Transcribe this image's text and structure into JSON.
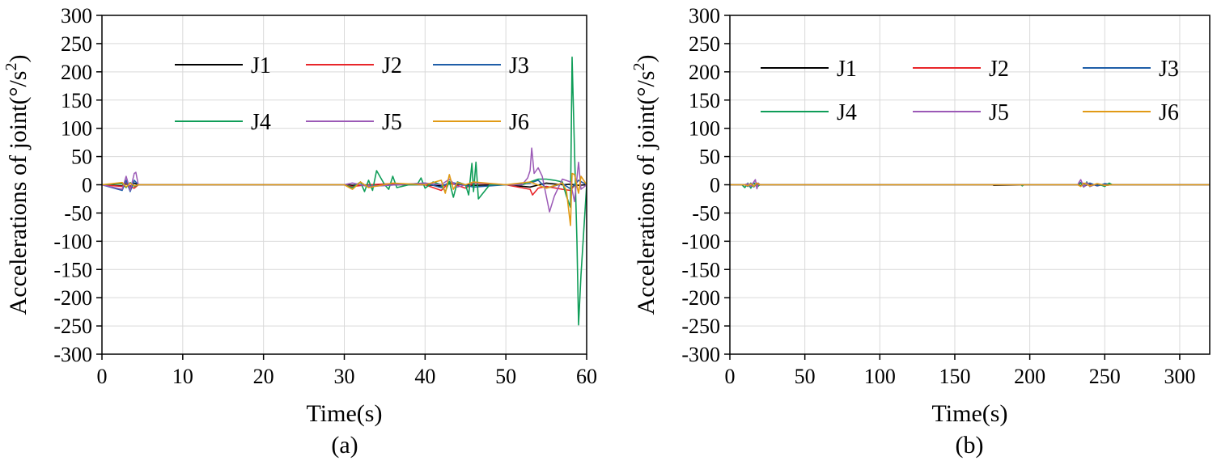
{
  "chart_data": [
    {
      "type": "line",
      "caption": "(a)",
      "xlabel": "Time(s)",
      "ylabel": "Accelerations of joint(°/s²)",
      "ylabel_parts": [
        "Accelerations of joint(°/s",
        "2",
        ")"
      ],
      "xlim": [
        0,
        60
      ],
      "ylim": [
        -300,
        300
      ],
      "xticks": [
        0,
        10,
        20,
        30,
        40,
        50,
        60
      ],
      "yticks": [
        -300,
        -250,
        -200,
        -150,
        -100,
        -50,
        0,
        50,
        100,
        150,
        200,
        250,
        300
      ],
      "grid": true,
      "legend_position": "top",
      "series": [
        {
          "name": "J1",
          "color": "#000000",
          "x": [
            0,
            2.5,
            3,
            3.5,
            4,
            4.5,
            10,
            20,
            30,
            31,
            33,
            36,
            40,
            42,
            43,
            46,
            50,
            53,
            55,
            57,
            58,
            59,
            60
          ],
          "y": [
            0,
            -2,
            2,
            -3,
            3,
            0,
            0,
            0,
            0,
            -1,
            0,
            0,
            0,
            -2,
            2,
            -1,
            0,
            -4,
            3,
            0,
            1,
            -1,
            0
          ]
        },
        {
          "name": "J2",
          "color": "#e8262a",
          "x": [
            0,
            2.5,
            3,
            3.5,
            4,
            4.5,
            10,
            20,
            30,
            31,
            33,
            36,
            40,
            42,
            43,
            45,
            46,
            50,
            53,
            53.3,
            54,
            55,
            57,
            58,
            59,
            60
          ],
          "y": [
            0,
            -3,
            3,
            -4,
            -6,
            0,
            0,
            0,
            0,
            -3,
            0,
            2,
            0,
            -10,
            4,
            -6,
            3,
            0,
            -8,
            -18,
            -6,
            -3,
            -8,
            -10,
            8,
            0
          ]
        },
        {
          "name": "J3",
          "color": "#1f5ea8",
          "x": [
            0,
            2.5,
            3,
            3.5,
            4,
            4.5,
            10,
            20,
            30,
            31,
            33,
            40,
            42,
            43,
            46,
            50,
            53,
            54,
            55,
            57,
            58,
            59,
            60
          ],
          "y": [
            0,
            -10,
            8,
            -12,
            8,
            0,
            0,
            0,
            0,
            3,
            -3,
            3,
            -5,
            5,
            -4,
            0,
            3,
            8,
            -6,
            2,
            -7,
            8,
            0
          ]
        },
        {
          "name": "J4",
          "color": "#0f9d58",
          "x": [
            0,
            2.5,
            3,
            3.5,
            4,
            4.5,
            10,
            20,
            30,
            31,
            32,
            32.5,
            33,
            33.5,
            34,
            35,
            35.5,
            36,
            36.5,
            38,
            39,
            39.5,
            40,
            41,
            42,
            42.5,
            43,
            43.5,
            44,
            45,
            45.4,
            45.8,
            46,
            46.3,
            46.6,
            48,
            50,
            52,
            53,
            54,
            55,
            56,
            57,
            57.5,
            58,
            58.2,
            58.5,
            58.8,
            59,
            59.3,
            60
          ],
          "y": [
            0,
            2,
            -5,
            4,
            -3,
            0,
            0,
            0,
            0,
            -5,
            5,
            -12,
            8,
            -10,
            25,
            0,
            -8,
            15,
            -5,
            0,
            0,
            12,
            -6,
            5,
            0,
            -12,
            6,
            -22,
            5,
            0,
            -18,
            38,
            -12,
            40,
            -25,
            0,
            0,
            0,
            5,
            10,
            10,
            8,
            5,
            -20,
            -40,
            226,
            60,
            -100,
            -248,
            -160,
            0
          ]
        },
        {
          "name": "J5",
          "color": "#9b59b6",
          "x": [
            0,
            2.5,
            3,
            3.5,
            4,
            4.2,
            4.5,
            10,
            20,
            30,
            31,
            33,
            40,
            42,
            43,
            44,
            46,
            50,
            52,
            52.7,
            53,
            53.2,
            53.5,
            54,
            54.5,
            55,
            55.4,
            56,
            57,
            58,
            58.5,
            59,
            59.3,
            60
          ],
          "y": [
            0,
            -8,
            15,
            -10,
            20,
            22,
            0,
            0,
            0,
            0,
            3,
            -3,
            3,
            0,
            10,
            -4,
            4,
            0,
            0,
            12,
            25,
            65,
            20,
            30,
            15,
            -20,
            -48,
            -20,
            10,
            5,
            -30,
            40,
            -8,
            0
          ],
          "width": 1.5
        },
        {
          "name": "J6",
          "color": "#e19a16",
          "x": [
            0,
            2.5,
            3,
            3.5,
            4,
            4.5,
            10,
            20,
            30,
            31,
            32,
            33,
            36,
            40,
            42,
            42.5,
            43,
            43.5,
            44,
            45,
            46,
            50,
            53,
            55,
            57,
            57.5,
            58,
            58.2,
            58.5,
            59,
            59.3,
            60
          ],
          "y": [
            0,
            4,
            -4,
            3,
            -2,
            0,
            0,
            0,
            0,
            -8,
            5,
            -5,
            3,
            0,
            8,
            -15,
            18,
            -8,
            4,
            0,
            5,
            0,
            5,
            -6,
            3,
            -10,
            -72,
            20,
            18,
            -15,
            15,
            0
          ]
        }
      ]
    },
    {
      "type": "line",
      "caption": "(b)",
      "xlabel": "Time(s)",
      "ylabel": "Accelerations of joint(°/s²)",
      "ylabel_parts": [
        "Accelerations of joint(°/s",
        "2",
        ")"
      ],
      "xlim": [
        0,
        320
      ],
      "ylim": [
        -300,
        300
      ],
      "xticks": [
        0,
        50,
        100,
        150,
        200,
        250,
        300
      ],
      "yticks": [
        -300,
        -250,
        -200,
        -150,
        -100,
        -50,
        0,
        50,
        100,
        150,
        200,
        250,
        300
      ],
      "grid": true,
      "legend_position": "top",
      "series": [
        {
          "name": "J1",
          "color": "#000000",
          "x": [
            0,
            10,
            12,
            14,
            16,
            18,
            20,
            100,
            175,
            176,
            200,
            232,
            234,
            236,
            240,
            245,
            250,
            255,
            320
          ],
          "y": [
            0,
            0,
            -2,
            2,
            -3,
            2,
            0,
            0,
            0,
            -1,
            0,
            0,
            -2,
            2,
            -1,
            1,
            -1,
            0,
            0
          ]
        },
        {
          "name": "J2",
          "color": "#e8262a",
          "x": [
            0,
            10,
            12,
            14,
            16,
            18,
            20,
            100,
            200,
            232,
            234,
            236,
            240,
            245,
            250,
            255,
            320
          ],
          "y": [
            0,
            0,
            2,
            -3,
            3,
            -2,
            0,
            0,
            0,
            0,
            3,
            -3,
            2,
            -2,
            1,
            0,
            0
          ]
        },
        {
          "name": "J3",
          "color": "#1f5ea8",
          "x": [
            0,
            10,
            12,
            14,
            16,
            18,
            20,
            100,
            200,
            232,
            234,
            236,
            240,
            245,
            250,
            255,
            320
          ],
          "y": [
            0,
            0,
            -3,
            3,
            -4,
            3,
            0,
            0,
            0,
            0,
            4,
            -3,
            3,
            -2,
            2,
            0,
            0
          ]
        },
        {
          "name": "J4",
          "color": "#0f9d58",
          "x": [
            0,
            8,
            10,
            12,
            14,
            16,
            18,
            20,
            100,
            194,
            195,
            196,
            200,
            232,
            234,
            236,
            238,
            240,
            245,
            250,
            253,
            255,
            320
          ],
          "y": [
            0,
            0,
            -5,
            3,
            -6,
            4,
            -4,
            0,
            0,
            0,
            -2,
            0,
            0,
            0,
            3,
            -4,
            5,
            -3,
            2,
            -3,
            3,
            0,
            0
          ]
        },
        {
          "name": "J5",
          "color": "#9b59b6",
          "x": [
            0,
            10,
            12,
            14,
            16,
            17,
            18,
            19,
            20,
            100,
            200,
            232,
            233,
            234,
            236,
            238,
            240,
            245,
            250,
            255,
            320
          ],
          "y": [
            0,
            0,
            2,
            -3,
            5,
            9,
            -7,
            3,
            0,
            0,
            0,
            0,
            5,
            9,
            -4,
            4,
            -3,
            2,
            -1,
            0,
            0
          ]
        },
        {
          "name": "J6",
          "color": "#e19a16",
          "x": [
            0,
            10,
            12,
            14,
            16,
            18,
            20,
            100,
            200,
            232,
            234,
            236,
            240,
            245,
            250,
            255,
            320
          ],
          "y": [
            0,
            0,
            -2,
            2,
            -3,
            3,
            0,
            0,
            0,
            0,
            -3,
            3,
            -2,
            2,
            -1,
            0,
            0
          ]
        }
      ]
    }
  ]
}
